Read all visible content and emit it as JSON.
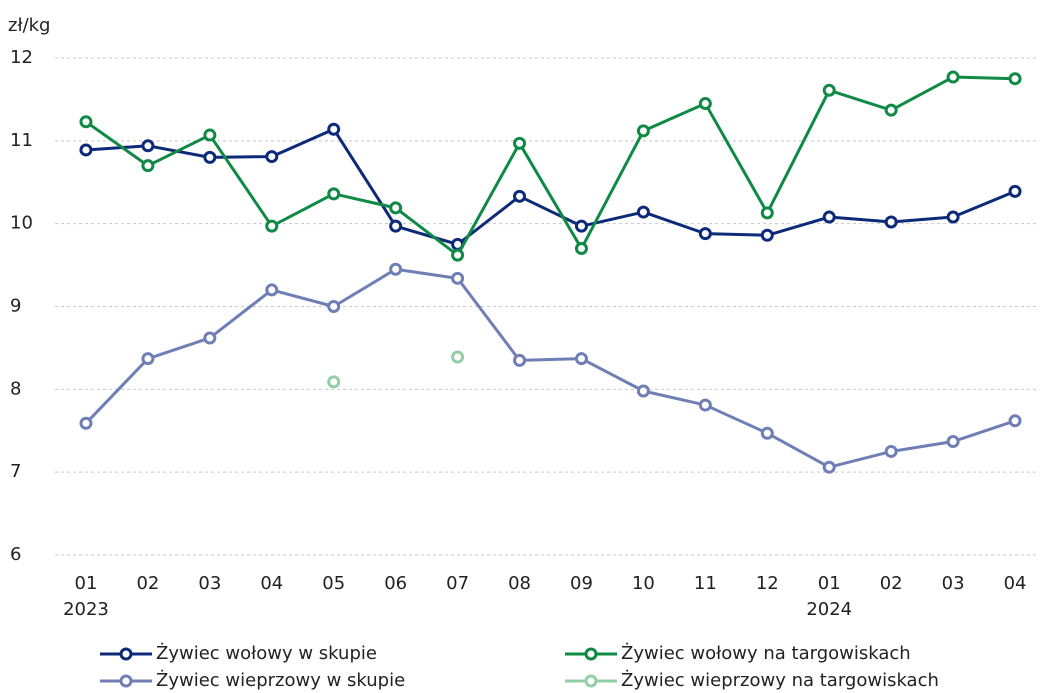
{
  "chart_data": {
    "type": "line",
    "y_label": "zł/kg",
    "categories": [
      "01",
      "02",
      "03",
      "04",
      "05",
      "06",
      "07",
      "08",
      "09",
      "10",
      "11",
      "12",
      "01",
      "02",
      "03",
      "04"
    ],
    "category_years": [
      "2023",
      null,
      null,
      null,
      null,
      null,
      null,
      null,
      null,
      null,
      null,
      null,
      "2024",
      null,
      null,
      null
    ],
    "ylim": [
      6,
      12
    ],
    "yticks": [
      6,
      7,
      8,
      9,
      10,
      11,
      12
    ],
    "grid": true,
    "series": [
      {
        "name": "Żywiec wołowy w skupie",
        "color": "#0d2a7a",
        "values": [
          10.89,
          10.94,
          10.8,
          10.81,
          11.14,
          9.97,
          9.75,
          10.33,
          9.97,
          10.14,
          9.88,
          9.86,
          10.08,
          10.02,
          10.08,
          10.39
        ]
      },
      {
        "name": "Żywiec wołowy na targowiskach",
        "color": "#0f8a45",
        "values": [
          11.23,
          10.7,
          11.07,
          9.97,
          10.36,
          10.19,
          9.62,
          10.97,
          9.7,
          11.12,
          11.45,
          10.13,
          11.61,
          11.37,
          11.77,
          11.75
        ]
      },
      {
        "name": "Żywiec wieprzowy w skupie",
        "color": "#6f7fb5",
        "values": [
          7.59,
          8.37,
          8.62,
          9.2,
          9.0,
          9.45,
          9.34,
          8.35,
          8.37,
          7.98,
          7.81,
          7.47,
          7.06,
          7.25,
          7.37,
          7.62
        ]
      },
      {
        "name": "Żywiec wieprzowy na targowiskach",
        "color": "#93cfa6",
        "values": [
          null,
          null,
          null,
          null,
          8.09,
          null,
          8.39,
          null,
          null,
          null,
          null,
          null,
          null,
          null,
          null,
          null
        ]
      }
    ]
  }
}
